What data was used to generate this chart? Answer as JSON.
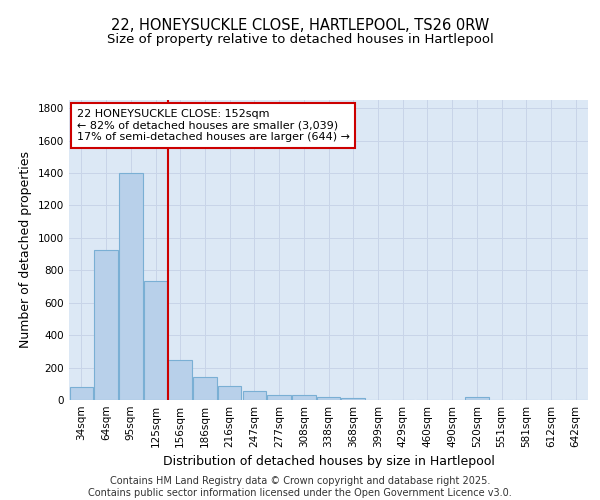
{
  "title_line1": "22, HONEYSUCKLE CLOSE, HARTLEPOOL, TS26 0RW",
  "title_line2": "Size of property relative to detached houses in Hartlepool",
  "xlabel": "Distribution of detached houses by size in Hartlepool",
  "ylabel": "Number of detached properties",
  "categories": [
    "34sqm",
    "64sqm",
    "95sqm",
    "125sqm",
    "156sqm",
    "186sqm",
    "216sqm",
    "247sqm",
    "277sqm",
    "308sqm",
    "338sqm",
    "368sqm",
    "399sqm",
    "429sqm",
    "460sqm",
    "490sqm",
    "520sqm",
    "551sqm",
    "581sqm",
    "612sqm",
    "642sqm"
  ],
  "values": [
    80,
    925,
    1400,
    735,
    248,
    140,
    85,
    55,
    33,
    30,
    20,
    10,
    0,
    0,
    0,
    0,
    18,
    0,
    0,
    0,
    0
  ],
  "bar_color": "#b8d0ea",
  "bar_edge_color": "#7aafd4",
  "grid_color": "#c8d4e8",
  "background_color": "#dce8f5",
  "vline_color": "#cc0000",
  "vline_x": 4.0,
  "annotation_line1": "22 HONEYSUCKLE CLOSE: 152sqm",
  "annotation_line2": "← 82% of detached houses are smaller (3,039)",
  "annotation_line3": "17% of semi-detached houses are larger (644) →",
  "ylim": [
    0,
    1850
  ],
  "yticks": [
    0,
    200,
    400,
    600,
    800,
    1000,
    1200,
    1400,
    1600,
    1800
  ],
  "footer_text": "Contains HM Land Registry data © Crown copyright and database right 2025.\nContains public sector information licensed under the Open Government Licence v3.0.",
  "title_fontsize": 10.5,
  "subtitle_fontsize": 9.5,
  "axis_label_fontsize": 9,
  "tick_fontsize": 7.5,
  "annotation_fontsize": 8,
  "footer_fontsize": 7
}
